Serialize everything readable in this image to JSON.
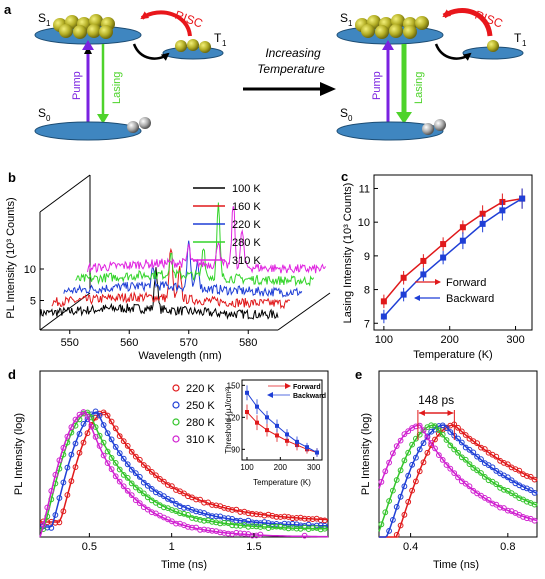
{
  "panels": {
    "a": {
      "letter": "a",
      "s1": "S",
      "s1_sub": "1",
      "t1": "T",
      "t1_sub": "1",
      "s0": "S",
      "s0_sub": "0",
      "risc": "RISC",
      "pump": "Pump",
      "lasing": "Lasing",
      "arrow_caption_line1": "Increasing",
      "arrow_caption_line2": "Temperature",
      "colors": {
        "risc": "#e8161b",
        "pump": "#7a22e0",
        "lasing": "#4ed32b",
        "level": "#3f86c0",
        "exciton": "#a6a21e"
      }
    },
    "b": {
      "letter": "b"
    },
    "c": {
      "letter": "c"
    },
    "d": {
      "letter": "d"
    },
    "e": {
      "letter": "e"
    }
  },
  "chart_data": [
    {
      "panel": "b",
      "type": "line",
      "xlabel": "Wavelength (nm)",
      "ylabel": "PL Intensity (10³ Counts)",
      "xticks": [
        "550",
        "560",
        "570",
        "580"
      ],
      "yticks": [
        "5",
        "10"
      ],
      "xlim": [
        545,
        585
      ],
      "series": [
        {
          "name": "100 K",
          "color": "#000000",
          "baseline": 3.2,
          "peaks": [
            [
              564.5,
              4.0
            ]
          ]
        },
        {
          "name": "160 K",
          "color": "#e0191b",
          "baseline": 4.2,
          "peaks": [
            [
              565.0,
              5.0
            ],
            [
              566.5,
              2.8
            ]
          ]
        },
        {
          "name": "220 K",
          "color": "#1f3fd6",
          "baseline": 5.3,
          "peaks": [
            [
              560.0,
              1.5
            ],
            [
              566.0,
              4.5
            ],
            [
              567.5,
              2.6
            ]
          ]
        },
        {
          "name": "280 K",
          "color": "#33d42a",
          "baseline": 6.4,
          "peaks": [
            [
              561.0,
              2.0
            ],
            [
              566.5,
              3.0
            ],
            [
              569.0,
              6.8
            ]
          ]
        },
        {
          "name": "310 K",
          "color": "#e025e0",
          "baseline": 7.6,
          "peaks": [
            [
              562.0,
              1.6
            ],
            [
              567.0,
              2.5
            ],
            [
              569.5,
              6.0
            ],
            [
              571.0,
              3.5
            ]
          ]
        }
      ]
    },
    {
      "panel": "c",
      "type": "scatter",
      "xlabel": "Temperature (K)",
      "ylabel": "Lasing Intensity (10³ Counts)",
      "xlim": [
        85,
        325
      ],
      "ylim": [
        6.8,
        11.4
      ],
      "xticks": [
        100,
        200,
        300
      ],
      "yticks": [
        7,
        8,
        9,
        10,
        11
      ],
      "series": [
        {
          "name": "Forward",
          "color": "#e0191b",
          "marker": "square",
          "x": [
            100,
            130,
            160,
            190,
            220,
            250,
            280,
            310
          ],
          "y": [
            7.65,
            8.35,
            8.85,
            9.35,
            9.85,
            10.25,
            10.6,
            10.7
          ],
          "err": [
            0.2,
            0.2,
            0.2,
            0.2,
            0.2,
            0.25,
            0.25,
            0.3
          ]
        },
        {
          "name": "Backward",
          "color": "#1f3fd6",
          "marker": "square",
          "x": [
            100,
            130,
            160,
            190,
            220,
            250,
            280,
            310
          ],
          "y": [
            7.2,
            7.85,
            8.45,
            8.95,
            9.45,
            9.95,
            10.35,
            10.7
          ],
          "err": [
            0.2,
            0.2,
            0.2,
            0.2,
            0.25,
            0.25,
            0.3,
            0.3
          ]
        }
      ]
    },
    {
      "panel": "d",
      "type": "scatter",
      "xlabel": "Time (ns)",
      "ylabel": "PL Intensity (log)",
      "xlim": [
        0.2,
        1.95
      ],
      "xticks": [
        "0.5",
        "1",
        "1.5"
      ],
      "xtick_values": [
        0.5,
        1.0,
        1.5
      ],
      "series": [
        {
          "name": "220 K",
          "color": "#e0191b",
          "peak": 0.6,
          "tail": 0.71
        },
        {
          "name": "250 K",
          "color": "#1f3fd6",
          "peak": 0.55,
          "tail": 0.83
        },
        {
          "name": "280 K",
          "color": "#33c42a",
          "peak": 0.5,
          "tail": 0.9
        },
        {
          "name": "310 K",
          "color": "#d020d0",
          "peak": 0.48,
          "tail": 1.0
        }
      ],
      "inset": {
        "type": "line",
        "xlabel": "Temperature (K)",
        "ylabel": "Threshold (μJ/cm²)",
        "xlim": [
          85,
          325
        ],
        "ylim": [
          80,
          155
        ],
        "xticks": [
          100,
          200,
          300
        ],
        "yticks": [
          90,
          120,
          150
        ],
        "series": [
          {
            "name": "Forward",
            "color": "#e0191b",
            "x": [
              100,
              130,
              160,
              190,
              220,
              250,
              280,
              310
            ],
            "y": [
              125,
              115,
              108,
              103,
              98,
              94,
              90,
              87
            ],
            "err": [
              7,
              7,
              6,
              6,
              5,
              5,
              4,
              4
            ]
          },
          {
            "name": "Backward",
            "color": "#1f3fd6",
            "x": [
              100,
              130,
              160,
              190,
              220,
              250,
              280,
              310
            ],
            "y": [
              143,
              130,
              120,
              112,
              104,
              97,
              92,
              87
            ],
            "err": [
              7,
              7,
              6,
              6,
              5,
              5,
              4,
              4
            ]
          }
        ]
      }
    },
    {
      "panel": "e",
      "type": "scatter",
      "xlabel": "Time (ns)",
      "ylabel": "PL Intensity (log)",
      "xlim": [
        0.27,
        0.92
      ],
      "xticks": [
        "0.4",
        "0.8"
      ],
      "xtick_values": [
        0.4,
        0.8
      ],
      "annotation": "148 ps",
      "annotation_range": [
        0.43,
        0.58
      ],
      "series": [
        {
          "name": "220 K",
          "color": "#e0191b",
          "peak": 0.58
        },
        {
          "name": "250 K",
          "color": "#1f3fd6",
          "peak": 0.54
        },
        {
          "name": "280 K",
          "color": "#33c42a",
          "peak": 0.5
        },
        {
          "name": "310 K",
          "color": "#d020d0",
          "peak": 0.44
        }
      ]
    }
  ]
}
